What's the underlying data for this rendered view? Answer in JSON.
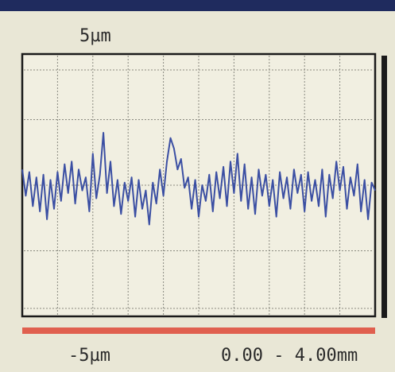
{
  "chart_data": {
    "type": "line",
    "color": "#3b4fa3",
    "xlim": [
      0,
      4
    ],
    "ylim": [
      -5,
      5
    ],
    "yticks": [
      {
        "value": 5,
        "label": "5µm"
      },
      {
        "value": -5,
        "label": "-5µm"
      }
    ],
    "x_range_label": "0.00 - 4.00mm",
    "x": [
      0,
      0.04,
      0.08,
      0.12,
      0.16,
      0.2,
      0.24,
      0.28,
      0.32,
      0.36,
      0.4,
      0.44,
      0.48,
      0.52,
      0.56,
      0.6,
      0.64,
      0.68,
      0.72,
      0.76,
      0.8,
      0.84,
      0.88,
      0.92,
      0.96,
      1,
      1.04,
      1.08,
      1.12,
      1.16,
      1.2,
      1.24,
      1.28,
      1.32,
      1.36,
      1.4,
      1.44,
      1.48,
      1.52,
      1.56,
      1.6,
      1.64,
      1.68,
      1.72,
      1.76,
      1.8,
      1.84,
      1.88,
      1.92,
      1.96,
      2,
      2.04,
      2.08,
      2.12,
      2.16,
      2.2,
      2.24,
      2.28,
      2.32,
      2.36,
      2.4,
      2.44,
      2.48,
      2.52,
      2.56,
      2.6,
      2.64,
      2.68,
      2.72,
      2.76,
      2.8,
      2.84,
      2.88,
      2.92,
      2.96,
      3,
      3.04,
      3.08,
      3.12,
      3.16,
      3.2,
      3.24,
      3.28,
      3.32,
      3.36,
      3.4,
      3.44,
      3.48,
      3.52,
      3.56,
      3.6,
      3.64,
      3.68,
      3.72,
      3.76,
      3.8,
      3.84,
      3.88,
      3.92,
      3.96,
      4
    ],
    "values": [
      0.6,
      -0.4,
      0.5,
      -0.8,
      0.3,
      -1.0,
      0.4,
      -1.3,
      0.2,
      -0.9,
      0.5,
      -0.6,
      0.8,
      -0.3,
      0.9,
      -0.7,
      0.6,
      -0.2,
      0.3,
      -1.0,
      1.2,
      -0.5,
      0.4,
      2.0,
      -0.3,
      0.9,
      -0.8,
      0.2,
      -1.1,
      0.1,
      -0.6,
      0.3,
      -1.2,
      0.2,
      -0.9,
      -0.2,
      -1.5,
      0.1,
      -0.7,
      0.6,
      -0.4,
      0.9,
      1.8,
      1.4,
      0.6,
      1.0,
      -0.1,
      0.3,
      -0.9,
      0.2,
      -1.2,
      0.0,
      -0.6,
      0.4,
      -1.0,
      0.5,
      -0.5,
      0.7,
      -0.8,
      0.9,
      -0.3,
      1.2,
      -0.6,
      0.8,
      -0.9,
      0.3,
      -1.1,
      0.6,
      -0.4,
      0.4,
      -0.8,
      0.2,
      -1.2,
      0.5,
      -0.5,
      0.3,
      -0.9,
      0.6,
      -0.3,
      0.4,
      -1.0,
      0.5,
      -0.6,
      0.2,
      -0.8,
      0.6,
      -1.2,
      0.4,
      -0.5,
      0.9,
      -0.2,
      0.7,
      -0.9,
      0.3,
      -0.4,
      0.8,
      -1.0,
      0.2,
      -1.3,
      0.1,
      -0.2
    ]
  }
}
